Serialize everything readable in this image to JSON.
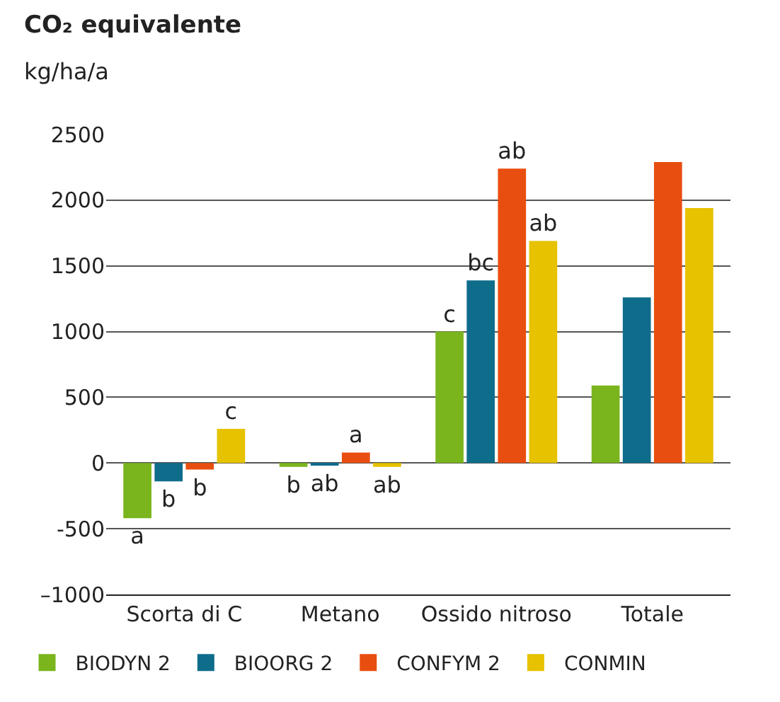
{
  "chart_data": {
    "type": "bar",
    "title": "CO₂ equivalente",
    "ylabel": "kg/ha/a",
    "categories": [
      "Scorta di C",
      "Metano",
      "Ossido nitroso",
      "Totale"
    ],
    "series": [
      {
        "name": "BIODYN 2",
        "color": "#7ab51d",
        "values": [
          -420,
          -30,
          1000,
          590
        ],
        "value_labels": [
          "a",
          "b",
          "c",
          null
        ]
      },
      {
        "name": "BIOORG 2",
        "color": "#0f6d8c",
        "values": [
          -140,
          -20,
          1390,
          1260
        ],
        "value_labels": [
          "b",
          "ab",
          "bc",
          null
        ]
      },
      {
        "name": "CONFYM 2",
        "color": "#e84e0f",
        "values": [
          -50,
          80,
          2240,
          2290
        ],
        "value_labels": [
          "b",
          "a",
          "ab",
          null
        ]
      },
      {
        "name": "CONMIN",
        "color": "#e6c200",
        "values": [
          260,
          -30,
          1690,
          1940
        ],
        "value_labels": [
          "c",
          "ab",
          "ab",
          null
        ]
      }
    ],
    "ylim": [
      -1000,
      2500
    ],
    "yticks": [
      {
        "value": -1000,
        "label": "–1000"
      },
      {
        "value": -500,
        "label": "-500"
      },
      0,
      500,
      1000,
      1500,
      2000,
      2500
    ],
    "grid": "y",
    "legend": "bottom"
  }
}
